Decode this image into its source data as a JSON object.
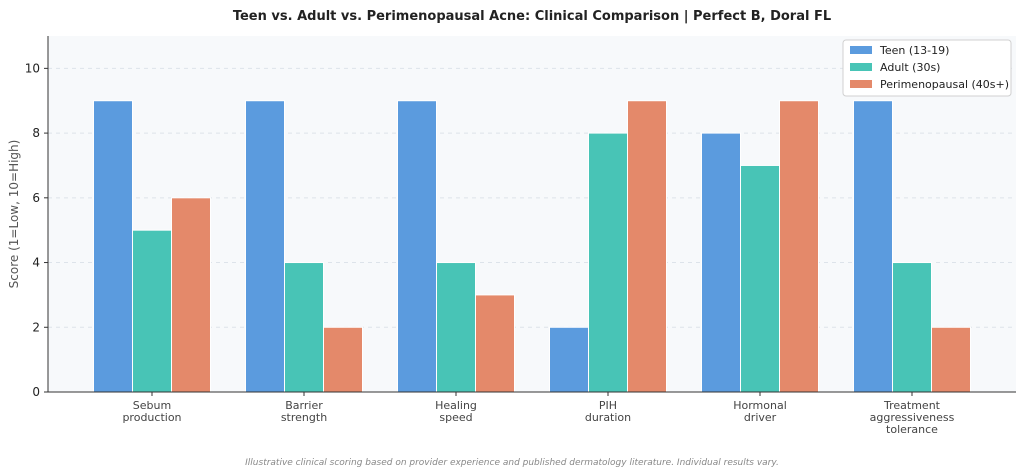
{
  "chart_data": {
    "type": "bar",
    "title": "Teen vs. Adult vs. Perimenopausal Acne: Clinical Comparison | Perfect B, Doral FL",
    "xlabel": "",
    "ylabel": "Score (1=Low, 10=High)",
    "ylim": [
      0,
      11
    ],
    "yticks": [
      0,
      2,
      4,
      6,
      8,
      10
    ],
    "grid": true,
    "legend_position": "top-right",
    "categories": [
      [
        "Sebum",
        "production"
      ],
      [
        "Barrier",
        "strength"
      ],
      [
        "Healing",
        "speed"
      ],
      [
        "PIH",
        "duration"
      ],
      [
        "Hormonal",
        "driver"
      ],
      [
        "Treatment",
        "aggressiveness",
        "tolerance"
      ]
    ],
    "series": [
      {
        "name": "Teen (13-19)",
        "color": "#5b9bde",
        "values": [
          9,
          9,
          9,
          2,
          8,
          9
        ]
      },
      {
        "name": "Adult (30s)",
        "color": "#48c4b6",
        "values": [
          5,
          4,
          4,
          8,
          7,
          4
        ]
      },
      {
        "name": "Perimenopausal (40s+)",
        "color": "#e4896a",
        "values": [
          6,
          2,
          3,
          9,
          9,
          2
        ]
      }
    ],
    "footnote": "Illustrative clinical scoring based on provider experience and published dermatology literature. Individual results vary."
  }
}
